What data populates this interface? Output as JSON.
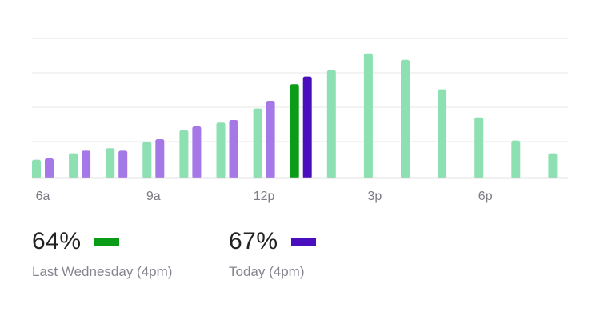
{
  "chart_data": {
    "type": "bar",
    "x_tick_labels": [
      "6a",
      "9a",
      "12p",
      "3p",
      "6p"
    ],
    "categories": [
      "6a",
      "7a",
      "8a",
      "9a",
      "10a",
      "11a",
      "12p",
      "1p",
      "2p",
      "3p",
      "4p",
      "5p",
      "6p",
      "7p",
      "8p"
    ],
    "ylim": [
      0,
      100
    ],
    "grid": true,
    "series": [
      {
        "name": "Last Wednesday (4pm)",
        "values": [
          14,
          19,
          23,
          28,
          37,
          43,
          54,
          73,
          84,
          97,
          92,
          69,
          47,
          29,
          19
        ]
      },
      {
        "name": "Today (4pm)",
        "values": [
          15,
          21,
          21,
          30,
          40,
          45,
          60,
          79,
          null,
          null,
          null,
          null,
          null,
          null,
          null
        ]
      }
    ],
    "highlight_category": "1p"
  },
  "colors": {
    "last_week_bar": "#8ce0b1",
    "today_bar": "#a478e6",
    "last_week_highlight": "#0b9c17",
    "today_highlight": "#4a0fbd",
    "grid": "#e7e7ea",
    "axis": "#c8c8cc"
  },
  "legend": {
    "last_week": {
      "value": "64%",
      "caption": "Last Wednesday (4pm)",
      "color": "#0b9c17"
    },
    "today": {
      "value": "67%",
      "caption": "Today (4pm)",
      "color": "#4a0fbd"
    }
  }
}
